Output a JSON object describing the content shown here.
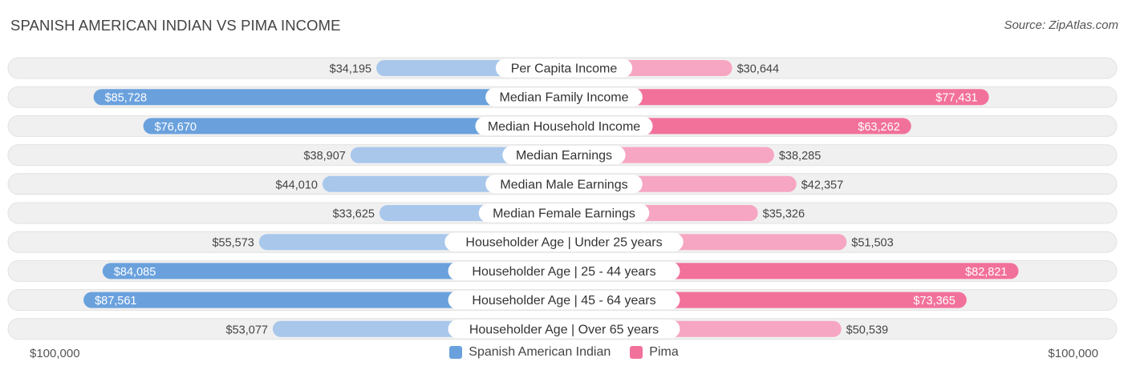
{
  "header": {
    "title": "SPANISH AMERICAN INDIAN VS PIMA INCOME",
    "source": "Source: ZipAtlas.com"
  },
  "colors": {
    "left_strong": "#6aa1dd",
    "left_light": "#a8c7eb",
    "right_strong": "#f2719b",
    "right_light": "#f6a6c2",
    "row_bg": "#f0f0f0"
  },
  "chart_data": {
    "type": "bar",
    "orientation": "diverging-horizontal",
    "title": "SPANISH AMERICAN INDIAN VS PIMA INCOME",
    "axis_max": 100000,
    "axis_left_label": "$100,000",
    "axis_right_label": "$100,000",
    "categories": [
      "Per Capita Income",
      "Median Family Income",
      "Median Household Income",
      "Median Earnings",
      "Median Male Earnings",
      "Median Female Earnings",
      "Householder Age | Under 25 years",
      "Householder Age | 25 - 44 years",
      "Householder Age | 45 - 64 years",
      "Householder Age | Over 65 years"
    ],
    "series": [
      {
        "name": "Spanish American Indian",
        "values": [
          34195,
          85728,
          76670,
          38907,
          44010,
          33625,
          55573,
          84085,
          87561,
          53077
        ],
        "labels": [
          "$34,195",
          "$85,728",
          "$76,670",
          "$38,907",
          "$44,010",
          "$33,625",
          "$55,573",
          "$84,085",
          "$87,561",
          "$53,077"
        ]
      },
      {
        "name": "Pima",
        "values": [
          30644,
          77431,
          63262,
          38285,
          42357,
          35326,
          51503,
          82821,
          73365,
          50539
        ],
        "labels": [
          "$30,644",
          "$77,431",
          "$63,262",
          "$38,285",
          "$42,357",
          "$35,326",
          "$51,503",
          "$82,821",
          "$73,365",
          "$50,539"
        ]
      }
    ],
    "legend": [
      "Spanish American Indian",
      "Pima"
    ]
  }
}
